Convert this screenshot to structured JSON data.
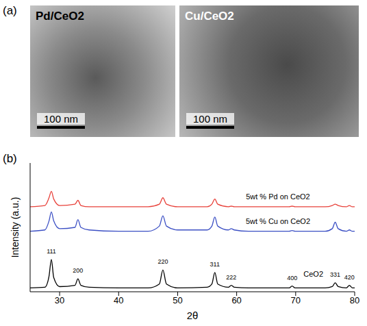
{
  "panel_a": {
    "letter": "(a)",
    "images": [
      {
        "label": "Pd/CeO2",
        "scale_bar": "100 nm"
      },
      {
        "label": "Cu/CeO2",
        "scale_bar": "100 nm"
      }
    ]
  },
  "chart_data": {
    "letter": "(b)",
    "type": "line",
    "x_label": "2θ",
    "y_label": "Intensity (a.u.)",
    "grid": false,
    "tick_labels": "x",
    "xlim": [
      25,
      80
    ],
    "xticks": [
      30,
      40,
      50,
      60,
      70,
      80
    ],
    "ylim": [
      0,
      100
    ],
    "yticks": [],
    "x": [
      25,
      27.5,
      28.2,
      28.6,
      29.0,
      30,
      32.6,
      33.1,
      33.6,
      35,
      40,
      45,
      46.9,
      47.5,
      48.1,
      50,
      55,
      55.8,
      56.3,
      56.8,
      58.6,
      59.1,
      59.6,
      62,
      65,
      68.9,
      69.4,
      69.9,
      72,
      75,
      76.2,
      76.7,
      77.2,
      78.6,
      79.1,
      79.6,
      80
    ],
    "series": [
      {
        "name": "5wt % Pd on CeO2",
        "color": "#e8413a",
        "label_at": [
          67,
          74
        ],
        "values": [
          66,
          67,
          73,
          78,
          72,
          67,
          68,
          71,
          67,
          66,
          66,
          66,
          68,
          73,
          68,
          66,
          66,
          68,
          72,
          68,
          66,
          66.5,
          66,
          66,
          66,
          66,
          66.5,
          66,
          66,
          66,
          67,
          68,
          67,
          66,
          67,
          66,
          66
        ]
      },
      {
        "name": "5wt % Cu on CeO2",
        "color": "#3b4fc4",
        "label_at": [
          67,
          55
        ],
        "values": [
          47,
          48,
          55,
          62,
          55,
          49,
          50,
          56,
          50,
          48,
          47,
          47,
          51,
          59,
          51,
          48,
          48,
          51,
          58,
          51,
          48,
          49,
          48,
          47,
          47,
          47,
          47.5,
          47,
          47,
          47,
          49,
          54,
          49,
          47,
          48,
          47,
          47
        ]
      },
      {
        "name": "CeO2",
        "color": "#000000",
        "label_at": [
          73,
          14
        ],
        "values": [
          3,
          3.5,
          12,
          25,
          11,
          4,
          5,
          10,
          5,
          3.5,
          3,
          3,
          6,
          17,
          6,
          3,
          3.5,
          6,
          15,
          6,
          3.5,
          5,
          3.5,
          3,
          3,
          3,
          4.5,
          3,
          3,
          3,
          4,
          7,
          4,
          3,
          5,
          3,
          3
        ]
      }
    ],
    "annotations": [
      {
        "x": 28.6,
        "y": 27,
        "text": "111"
      },
      {
        "x": 33.1,
        "y": 12,
        "text": "200"
      },
      {
        "x": 47.5,
        "y": 19,
        "text": "220"
      },
      {
        "x": 56.3,
        "y": 17,
        "text": "311"
      },
      {
        "x": 59.1,
        "y": 7,
        "text": "222"
      },
      {
        "x": 69.4,
        "y": 6.5,
        "text": "400"
      },
      {
        "x": 76.7,
        "y": 9,
        "text": "331"
      },
      {
        "x": 79.1,
        "y": 7,
        "text": "420"
      }
    ]
  }
}
